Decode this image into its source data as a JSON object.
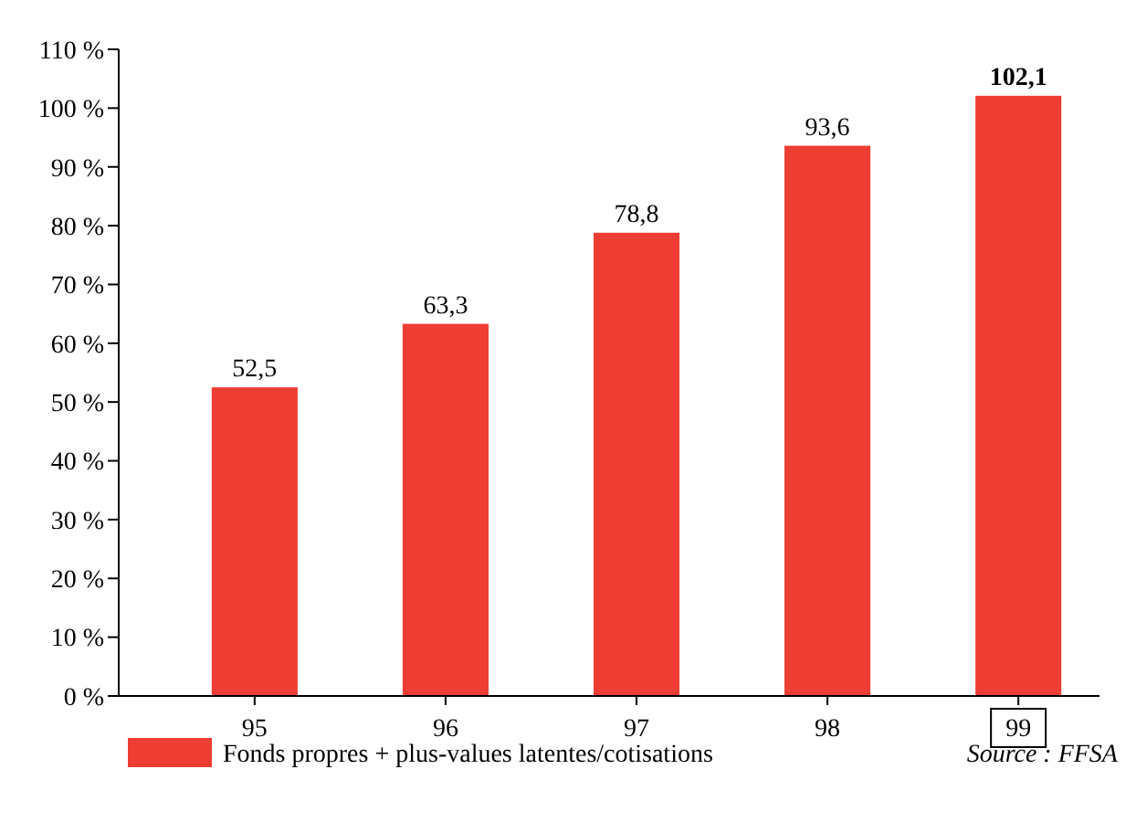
{
  "chart_data": {
    "type": "bar",
    "categories": [
      "95",
      "96",
      "97",
      "98",
      "99"
    ],
    "series": [
      {
        "name": "Fonds propres + plus-values latentes/cotisations",
        "color": "#ee3d33",
        "values": [
          52.5,
          63.3,
          78.8,
          93.6,
          102.1
        ]
      }
    ],
    "value_labels": [
      "52,5",
      "63,3",
      "78,8",
      "93,6",
      "102,1"
    ],
    "ylim": [
      0,
      110
    ],
    "yticks": [
      {
        "value": 0,
        "label": "0 %"
      },
      {
        "value": 10,
        "label": "10 %"
      },
      {
        "value": 20,
        "label": "20 %"
      },
      {
        "value": 30,
        "label": "30 %"
      },
      {
        "value": 40,
        "label": "40 %"
      },
      {
        "value": 50,
        "label": "50 %"
      },
      {
        "value": 60,
        "label": "60 %"
      },
      {
        "value": 70,
        "label": "70 %"
      },
      {
        "value": 80,
        "label": "80 %"
      },
      {
        "value": 90,
        "label": "90 %"
      },
      {
        "value": 100,
        "label": "100 %"
      },
      {
        "value": 110,
        "label": "110 %"
      }
    ],
    "legend": "bottom left",
    "grid": false,
    "annotations": [
      "Source : FFSA"
    ]
  }
}
